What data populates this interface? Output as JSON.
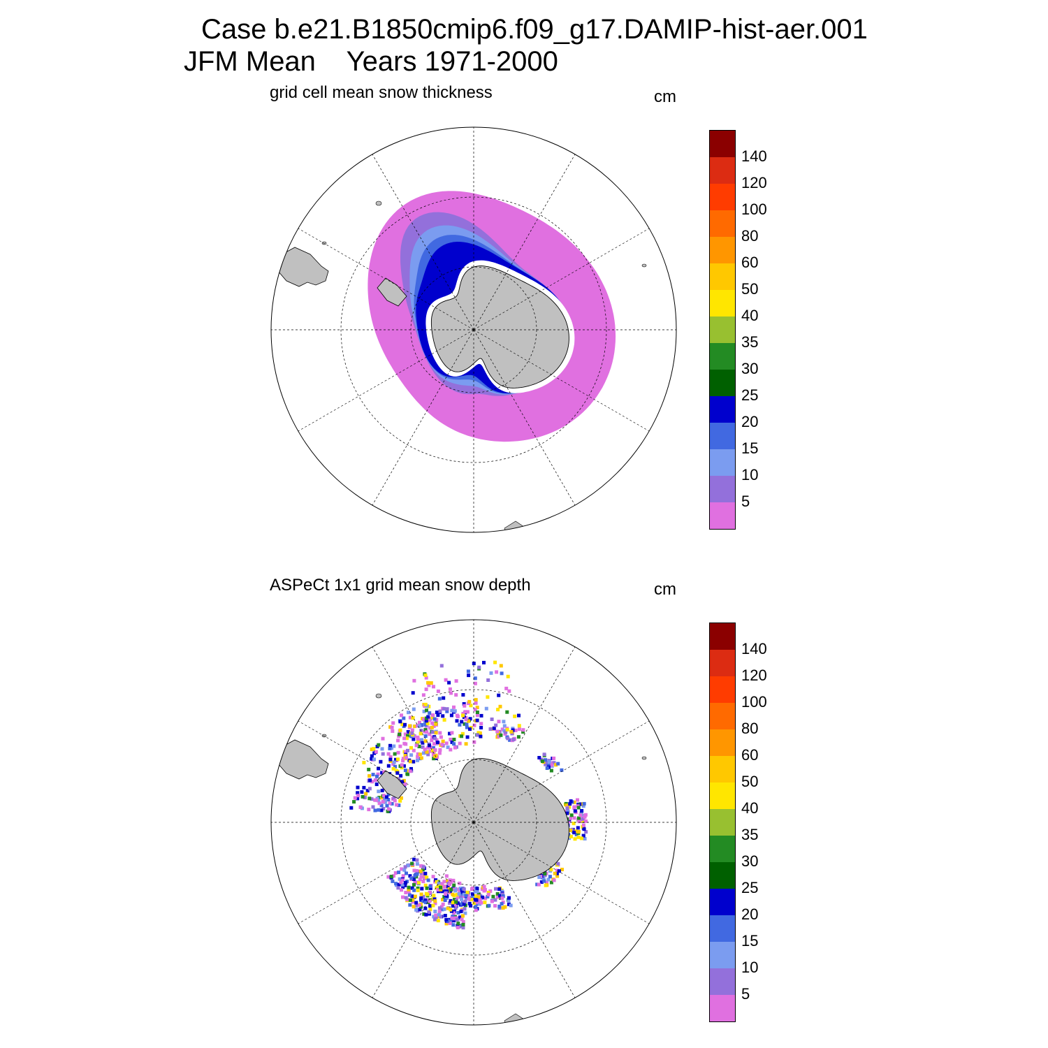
{
  "header": {
    "line1": "Case b.e21.B1850cmip6.f09_g17.DAMIP-hist-aer.001",
    "line2": "JFM Mean    Years 1971-2000"
  },
  "colors": {
    "land": "#c0c0c0",
    "grid": "#000000",
    "background": "#ffffff"
  },
  "colorbar": {
    "labels": [
      "140",
      "120",
      "100",
      "80",
      "60",
      "50",
      "40",
      "35",
      "30",
      "25",
      "20",
      "15",
      "10",
      "5"
    ],
    "colors": [
      "#8b0000",
      "#dc2c12",
      "#ff3c00",
      "#ff6a00",
      "#ff9600",
      "#ffc800",
      "#ffe600",
      "#98c030",
      "#238b23",
      "#006000",
      "#0000cd",
      "#4169e1",
      "#7b9cf0",
      "#9370db",
      "#e070e0"
    ]
  },
  "panels": [
    {
      "title": "grid cell mean snow thickness",
      "units": "cm"
    },
    {
      "title": "ASPeCt 1x1 grid mean snow depth",
      "units": "cm"
    }
  ]
}
